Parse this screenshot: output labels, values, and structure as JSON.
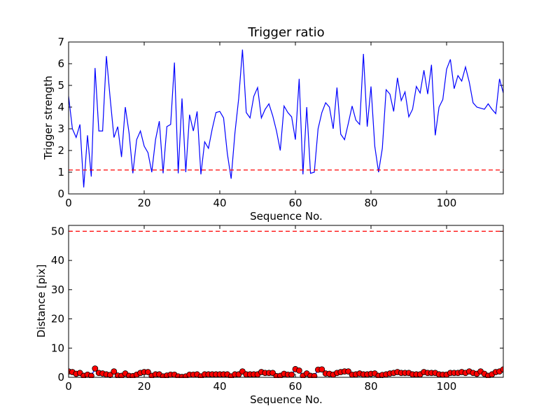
{
  "chart_data": [
    {
      "type": "line",
      "title": "Trigger ratio",
      "xlabel": "Sequence No.",
      "ylabel": "Trigger strength",
      "xlim": [
        0,
        115
      ],
      "ylim": [
        0,
        7
      ],
      "xticks": [
        "0",
        "20",
        "40",
        "60",
        "80",
        "100"
      ],
      "xtick_values": [
        0,
        20,
        40,
        60,
        80,
        100
      ],
      "yticks": [
        "0",
        "1",
        "2",
        "3",
        "4",
        "5",
        "6",
        "7"
      ],
      "ytick_values": [
        0,
        1,
        2,
        3,
        4,
        5,
        6,
        7
      ],
      "colors": {
        "series": "#0000ff",
        "threshold": "#ff0000"
      },
      "threshold": 1.1,
      "series": [
        {
          "x": [
            0,
            1,
            2,
            3,
            4,
            5,
            6,
            7,
            8,
            9,
            10,
            11,
            12,
            13,
            14,
            15,
            16,
            17,
            18,
            19,
            20,
            21,
            22,
            23,
            24,
            25,
            26,
            27,
            28,
            29,
            30,
            31,
            32,
            33,
            34,
            35,
            36,
            37,
            38,
            39,
            40,
            41,
            42,
            43,
            44,
            45,
            46,
            47,
            48,
            49,
            50,
            51,
            52,
            53,
            54,
            55,
            56,
            57,
            58,
            59,
            60,
            61,
            62,
            63,
            64,
            65,
            66,
            67,
            68,
            69,
            70,
            71,
            72,
            73,
            74,
            75,
            76,
            77,
            78,
            79,
            80,
            81,
            82,
            83,
            84,
            85,
            86,
            87,
            88,
            89,
            90,
            91,
            92,
            93,
            94,
            95,
            96,
            97,
            98,
            99,
            100,
            101,
            102,
            103,
            104,
            105,
            106,
            107,
            108,
            109,
            110,
            111,
            112,
            113,
            114,
            115
          ],
          "values": [
            4.5,
            3.0,
            2.6,
            3.2,
            0.3,
            2.7,
            0.8,
            5.8,
            2.9,
            2.9,
            6.35,
            4.4,
            2.6,
            3.1,
            1.7,
            4.0,
            2.8,
            0.95,
            2.5,
            2.9,
            2.2,
            1.9,
            1.0,
            2.5,
            3.35,
            0.95,
            3.1,
            3.2,
            6.05,
            0.95,
            4.4,
            1.0,
            3.65,
            2.9,
            3.8,
            0.9,
            2.4,
            2.1,
            3.0,
            3.75,
            3.8,
            3.5,
            1.85,
            0.7,
            2.8,
            4.4,
            6.65,
            3.75,
            3.5,
            4.5,
            4.9,
            3.5,
            3.9,
            4.15,
            3.6,
            2.9,
            2.0,
            4.05,
            3.75,
            3.55,
            2.5,
            5.3,
            0.9,
            4.0,
            0.95,
            1.0,
            3.0,
            3.75,
            4.2,
            4.0,
            3.0,
            4.9,
            2.75,
            2.5,
            3.25,
            4.05,
            3.4,
            3.2,
            6.45,
            3.1,
            4.95,
            2.2,
            1.0,
            2.1,
            4.8,
            4.6,
            3.8,
            5.35,
            4.3,
            4.7,
            3.55,
            3.9,
            4.95,
            4.65,
            5.7,
            4.6,
            5.95,
            2.7,
            4.0,
            4.35,
            5.75,
            6.2,
            4.85,
            5.45,
            5.2,
            5.85,
            5.15,
            4.2,
            4.0,
            3.95,
            3.9,
            4.15,
            3.9,
            3.7,
            5.3,
            4.65
          ]
        }
      ]
    },
    {
      "type": "scatter",
      "title": "",
      "xlabel": "Sequence No.",
      "ylabel": "Distance [pix]",
      "xlim": [
        0,
        115
      ],
      "ylim": [
        0,
        52
      ],
      "xticks": [
        "0",
        "20",
        "40",
        "60",
        "80",
        "100"
      ],
      "xtick_values": [
        0,
        20,
        40,
        60,
        80,
        100
      ],
      "yticks": [
        "0",
        "10",
        "20",
        "30",
        "40",
        "50"
      ],
      "ytick_values": [
        0,
        10,
        20,
        30,
        40,
        50
      ],
      "colors": {
        "marker": "#ff0000",
        "line": "#0000ff",
        "threshold": "#ff0000"
      },
      "threshold": 50,
      "series": [
        {
          "x": [
            0,
            1,
            2,
            3,
            4,
            5,
            6,
            7,
            8,
            9,
            10,
            11,
            12,
            13,
            14,
            15,
            16,
            17,
            18,
            19,
            20,
            21,
            22,
            23,
            24,
            25,
            26,
            27,
            28,
            29,
            30,
            31,
            32,
            33,
            34,
            35,
            36,
            37,
            38,
            39,
            40,
            41,
            42,
            43,
            44,
            45,
            46,
            47,
            48,
            49,
            50,
            51,
            52,
            53,
            54,
            55,
            56,
            57,
            58,
            59,
            60,
            61,
            62,
            63,
            64,
            65,
            66,
            67,
            68,
            69,
            70,
            71,
            72,
            73,
            74,
            75,
            76,
            77,
            78,
            79,
            80,
            81,
            82,
            83,
            84,
            85,
            86,
            87,
            88,
            89,
            90,
            91,
            92,
            93,
            94,
            95,
            96,
            97,
            98,
            99,
            100,
            101,
            102,
            103,
            104,
            105,
            106,
            107,
            108,
            109,
            110,
            111,
            112,
            113,
            114,
            115
          ],
          "values": [
            2.0,
            1.8,
            1.2,
            1.5,
            0.5,
            0.9,
            0.5,
            3.0,
            1.5,
            1.3,
            1.0,
            0.8,
            2.0,
            0.6,
            0.5,
            1.3,
            0.5,
            0.4,
            0.9,
            1.5,
            1.8,
            1.8,
            0.5,
            1.0,
            1.0,
            0.3,
            0.6,
            0.9,
            0.9,
            0.3,
            0.1,
            0.3,
            0.9,
            0.9,
            1.0,
            0.3,
            1.0,
            1.0,
            1.0,
            1.0,
            1.0,
            1.0,
            1.0,
            0.3,
            1.0,
            1.0,
            2.0,
            1.0,
            1.0,
            1.0,
            1.0,
            1.8,
            1.5,
            1.5,
            1.5,
            0.4,
            0.5,
            1.2,
            0.9,
            0.9,
            2.8,
            2.3,
            0.5,
            1.3,
            0.5,
            0.4,
            2.6,
            2.7,
            1.3,
            1.2,
            0.9,
            1.5,
            1.8,
            2.0,
            2.0,
            0.9,
            1.0,
            1.3,
            1.0,
            1.0,
            1.2,
            1.3,
            0.5,
            0.8,
            1.0,
            1.3,
            1.5,
            1.8,
            1.5,
            1.5,
            1.5,
            1.0,
            1.0,
            1.0,
            1.8,
            1.5,
            1.5,
            1.5,
            1.0,
            0.9,
            0.9,
            1.5,
            1.5,
            1.5,
            1.8,
            1.5,
            2.0,
            1.5,
            1.2,
            2.0,
            1.2,
            0.5,
            1.0,
            1.8,
            2.0,
            2.7
          ]
        }
      ]
    }
  ]
}
